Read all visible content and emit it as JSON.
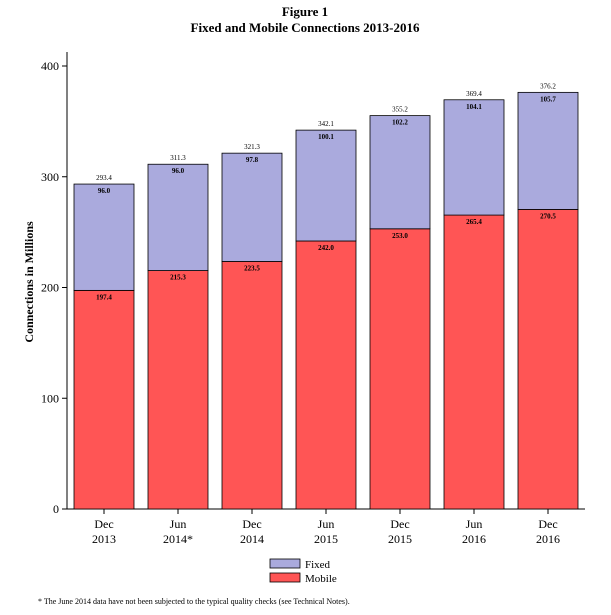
{
  "chart_data": {
    "type": "bar",
    "stacked": true,
    "title_line1": "Figure 1",
    "title_line2": "Fixed and Mobile Connections 2013-2016",
    "xlabel": "",
    "ylabel": "Connections in Millions",
    "ylim": [
      0,
      400
    ],
    "yticks": [
      "0",
      "100",
      "200",
      "300",
      "400"
    ],
    "categories": [
      [
        "Dec",
        "2013"
      ],
      [
        "Jun",
        "2014*"
      ],
      [
        "Dec",
        "2014"
      ],
      [
        "Jun",
        "2015"
      ],
      [
        "Dec",
        "2015"
      ],
      [
        "Jun",
        "2016"
      ],
      [
        "Dec",
        "2016"
      ]
    ],
    "series": [
      {
        "name": "Mobile",
        "color": "#ff5555",
        "values": [
          197.4,
          215.3,
          223.5,
          242.0,
          253.0,
          265.4,
          270.5
        ],
        "labels": [
          "197.4",
          "215.3",
          "223.5",
          "242.0",
          "253.0",
          "265.4",
          "270.5"
        ]
      },
      {
        "name": "Fixed",
        "color": "#aaaadd",
        "values": [
          96.0,
          96.0,
          97.8,
          100.1,
          102.2,
          104.1,
          105.7
        ],
        "labels": [
          "96.0",
          "96.0",
          "97.8",
          "100.1",
          "102.2",
          "104.1",
          "105.7"
        ]
      }
    ],
    "totals": [
      "293.4",
      "311.3",
      "321.3",
      "342.1",
      "355.2",
      "369.4",
      "376.2"
    ],
    "legend": [
      {
        "name": "Fixed",
        "color": "#aaaadd"
      },
      {
        "name": "Mobile",
        "color": "#ff5555"
      }
    ]
  },
  "footnote": "* The June 2014 data have not been subjected to the typical quality checks (see Technical Notes)."
}
